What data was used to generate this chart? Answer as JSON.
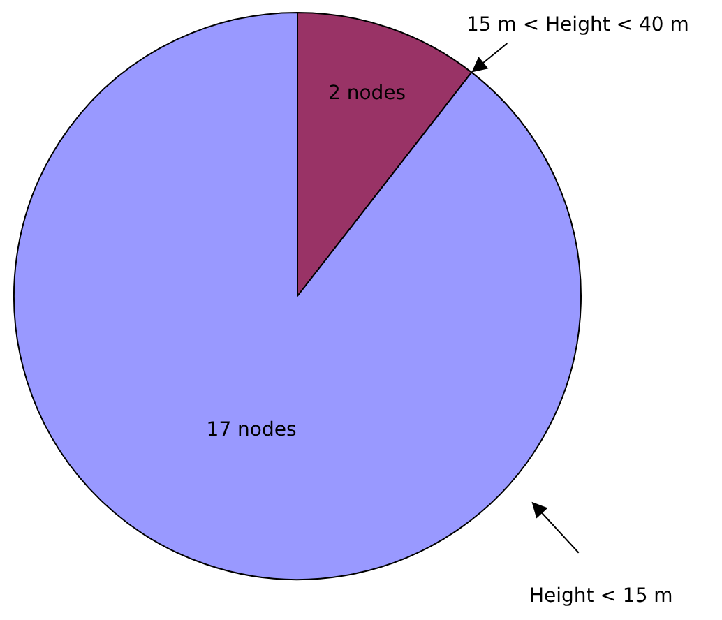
{
  "chart_data": {
    "type": "pie",
    "categories": [
      "15 m < Height < 40 m",
      "Height < 15 m"
    ],
    "values": [
      2,
      17
    ],
    "colors": [
      "#993366",
      "#9999ff"
    ],
    "value_labels": [
      "2 nodes",
      "17 nodes"
    ]
  }
}
